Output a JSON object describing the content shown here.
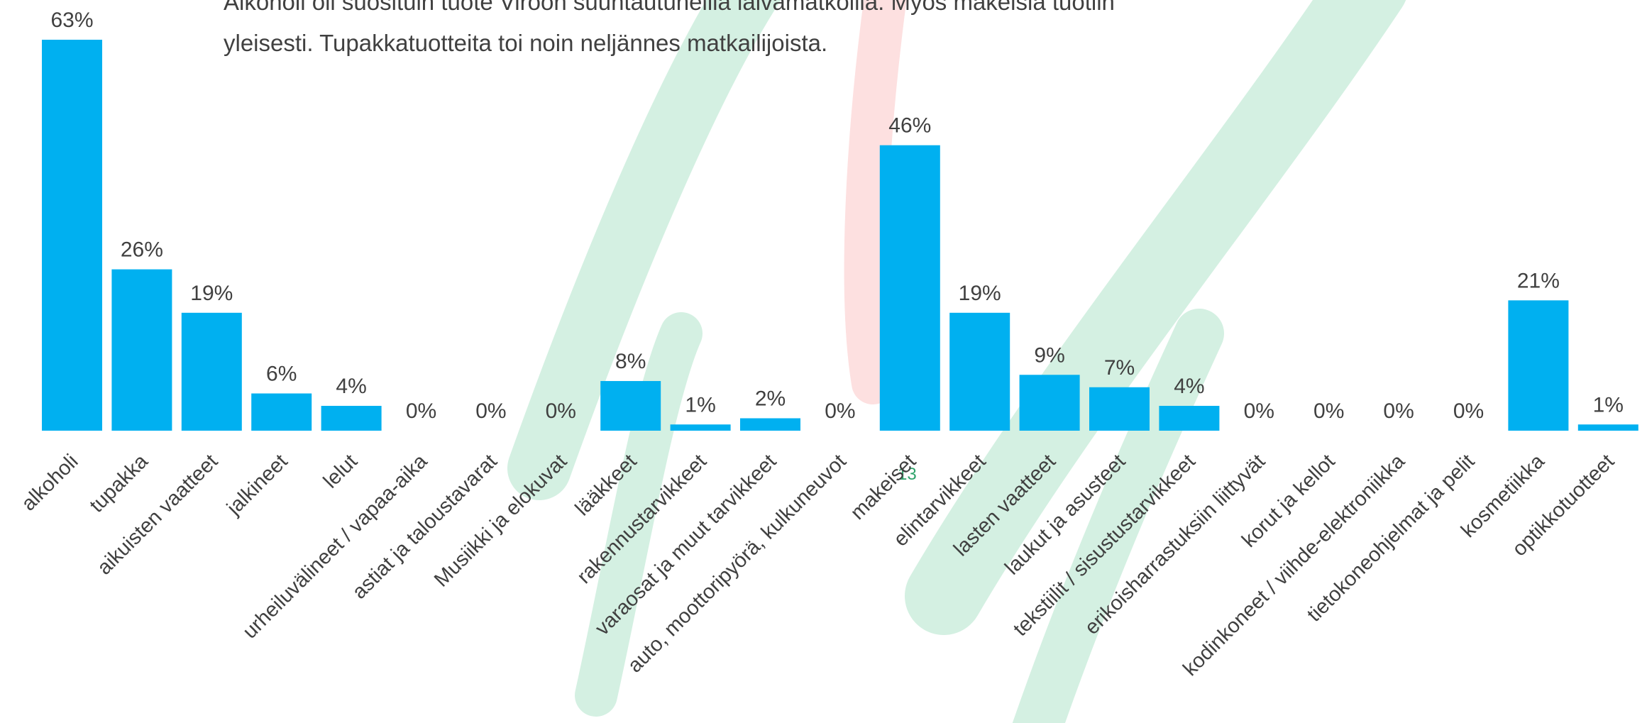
{
  "chart_data": {
    "type": "bar",
    "subtitle": [
      "Alkoholi oli suosituin tuote Viroon suuntautuneilla laivamatkoilla. Myös makeisia tuotiin",
      "yleisesti. Tupakkatuotteita toi noin neljännes matkailijoista."
    ],
    "categories": [
      "alkoholi",
      "tupakka",
      "aikuisten vaatteet",
      "jalkineet",
      "lelut",
      "urheiluvälineet / vapaa-aika",
      "astiat ja taloustavarat",
      "Musiikki ja elokuvat",
      "lääkkeet",
      "rakennustarvikkeet",
      "varaosat ja muut tarvikkeet",
      "auto, moottoripyörä, kulkuneuvot",
      "makeiset",
      "elintarvikkeet",
      "lasten vaatteet",
      "laukut ja asusteet",
      "tekstiilit / sisustustarvikkeet",
      "erikoisharrastuksiin liittyvät",
      "korut ja kellot",
      "kodinkoneet / viihde-elektroniikka",
      "tietokoneohjelmat ja pelit",
      "kosmetiikka",
      "optikkotuotteet"
    ],
    "values": [
      63,
      26,
      19,
      6,
      4,
      0,
      0,
      0,
      8,
      1,
      2,
      0,
      46,
      19,
      9,
      7,
      4,
      0,
      0,
      0,
      0,
      21,
      1
    ],
    "value_labels": [
      "63%",
      "26%",
      "19%",
      "6%",
      "4%",
      "0%",
      "0%",
      "0%",
      "8%",
      "1%",
      "2%",
      "0%",
      "46%",
      "19%",
      "9%",
      "7%",
      "4%",
      "0%",
      "0%",
      "0%",
      "0%",
      "21%",
      "1%"
    ],
    "color": "#00b0f0",
    "ylim": [
      0,
      63
    ],
    "page_number": "13"
  }
}
